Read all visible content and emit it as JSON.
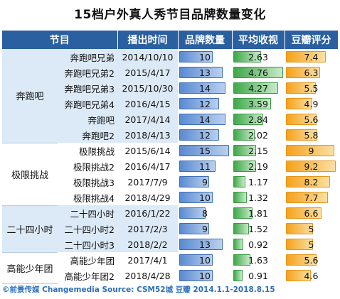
{
  "title": "15档户外真人秀节目品牌数量变化",
  "headers": {
    "program": "节目",
    "air_time": "播出时间",
    "brand_count": "品牌数量",
    "avg_rating": "平均收视",
    "douban_score": "豆瓣评分"
  },
  "groups": [
    {
      "name": "奔跑吧",
      "rows": [
        0,
        1,
        2,
        3,
        4,
        5
      ]
    },
    {
      "name": "极限挑战",
      "rows": [
        6,
        7,
        8,
        9
      ]
    },
    {
      "name": "二十四小时",
      "rows": [
        10,
        11,
        12
      ]
    },
    {
      "name": "高能少年团",
      "rows": [
        13,
        14
      ]
    }
  ],
  "chart_data": {
    "type": "table",
    "title": "15档户外真人秀节目品牌数量变化",
    "columns": [
      "节目",
      "播出时间",
      "品牌数量",
      "平均收视",
      "豆瓣评分"
    ],
    "rows": [
      {
        "group": "奔跑吧",
        "show": "奔跑吧兄弟",
        "date": "2014/10/10",
        "brands": 10,
        "rating": "2.63",
        "score": "7.4"
      },
      {
        "group": "奔跑吧",
        "show": "奔跑吧兄弟2",
        "date": "2015/4/17",
        "brands": 13,
        "rating": "4.76",
        "score": "6.3"
      },
      {
        "group": "奔跑吧",
        "show": "奔跑吧兄弟3",
        "date": "2015/10/30",
        "brands": 14,
        "rating": "4.27",
        "score": "5.5"
      },
      {
        "group": "奔跑吧",
        "show": "奔跑吧兄弟4",
        "date": "2016/4/15",
        "brands": 12,
        "rating": "3.59",
        "score": "4.9"
      },
      {
        "group": "奔跑吧",
        "show": "奔跑吧",
        "date": "2017/4/14",
        "brands": 14,
        "rating": "2.84",
        "score": "5.6"
      },
      {
        "group": "奔跑吧",
        "show": "奔跑吧2",
        "date": "2018/4/13",
        "brands": 12,
        "rating": "2.02",
        "score": "5.8"
      },
      {
        "group": "极限挑战",
        "show": "极限挑战",
        "date": "2015/6/14",
        "brands": 15,
        "rating": "2.15",
        "score": "9"
      },
      {
        "group": "极限挑战",
        "show": "极限挑战2",
        "date": "2016/4/17",
        "brands": 11,
        "rating": "2.19",
        "score": "9.2"
      },
      {
        "group": "极限挑战",
        "show": "极限挑战3",
        "date": "2017/7/9",
        "brands": 9,
        "rating": "1.17",
        "score": "8.2"
      },
      {
        "group": "极限挑战",
        "show": "极限挑战4",
        "date": "2018/4/29",
        "brands": 10,
        "rating": "1.32",
        "score": "7.7"
      },
      {
        "group": "二十四小时",
        "show": "二十四小时",
        "date": "2016/1/22",
        "brands": 8,
        "rating": "1.81",
        "score": "6.6"
      },
      {
        "group": "二十四小时",
        "show": "二十四小时2",
        "date": "2017/2/3",
        "brands": 9,
        "rating": "1.52",
        "score": "5"
      },
      {
        "group": "二十四小时",
        "show": "二十四小时3",
        "date": "2018/2/2",
        "brands": 13,
        "rating": "0.92",
        "score": "5"
      },
      {
        "group": "高能少年团",
        "show": "高能少年团",
        "date": "2017/4/1",
        "brands": 10,
        "rating": "1.63",
        "score": "5.6"
      },
      {
        "group": "高能少年团",
        "show": "高能少年团2",
        "date": "2018/4/28",
        "brands": 10,
        "rating": "0.91",
        "score": "4.6"
      }
    ],
    "bar_scale": {
      "brands_max": 15,
      "rating_max": 4.76,
      "score_max": 9.2
    }
  },
  "colors": {
    "header_bg": "#2a5fa0",
    "brand_bar": "#5a8ad2",
    "rating_bar": "#3fa84a",
    "score_bar": "#f4a21c",
    "row_band": "#dce9f6",
    "footer_text": "#2a6fbd"
  },
  "footer": "©前景传媒 Changemedia   Source: CSM52城  豆瓣  2014.1.1-2018.8.15"
}
